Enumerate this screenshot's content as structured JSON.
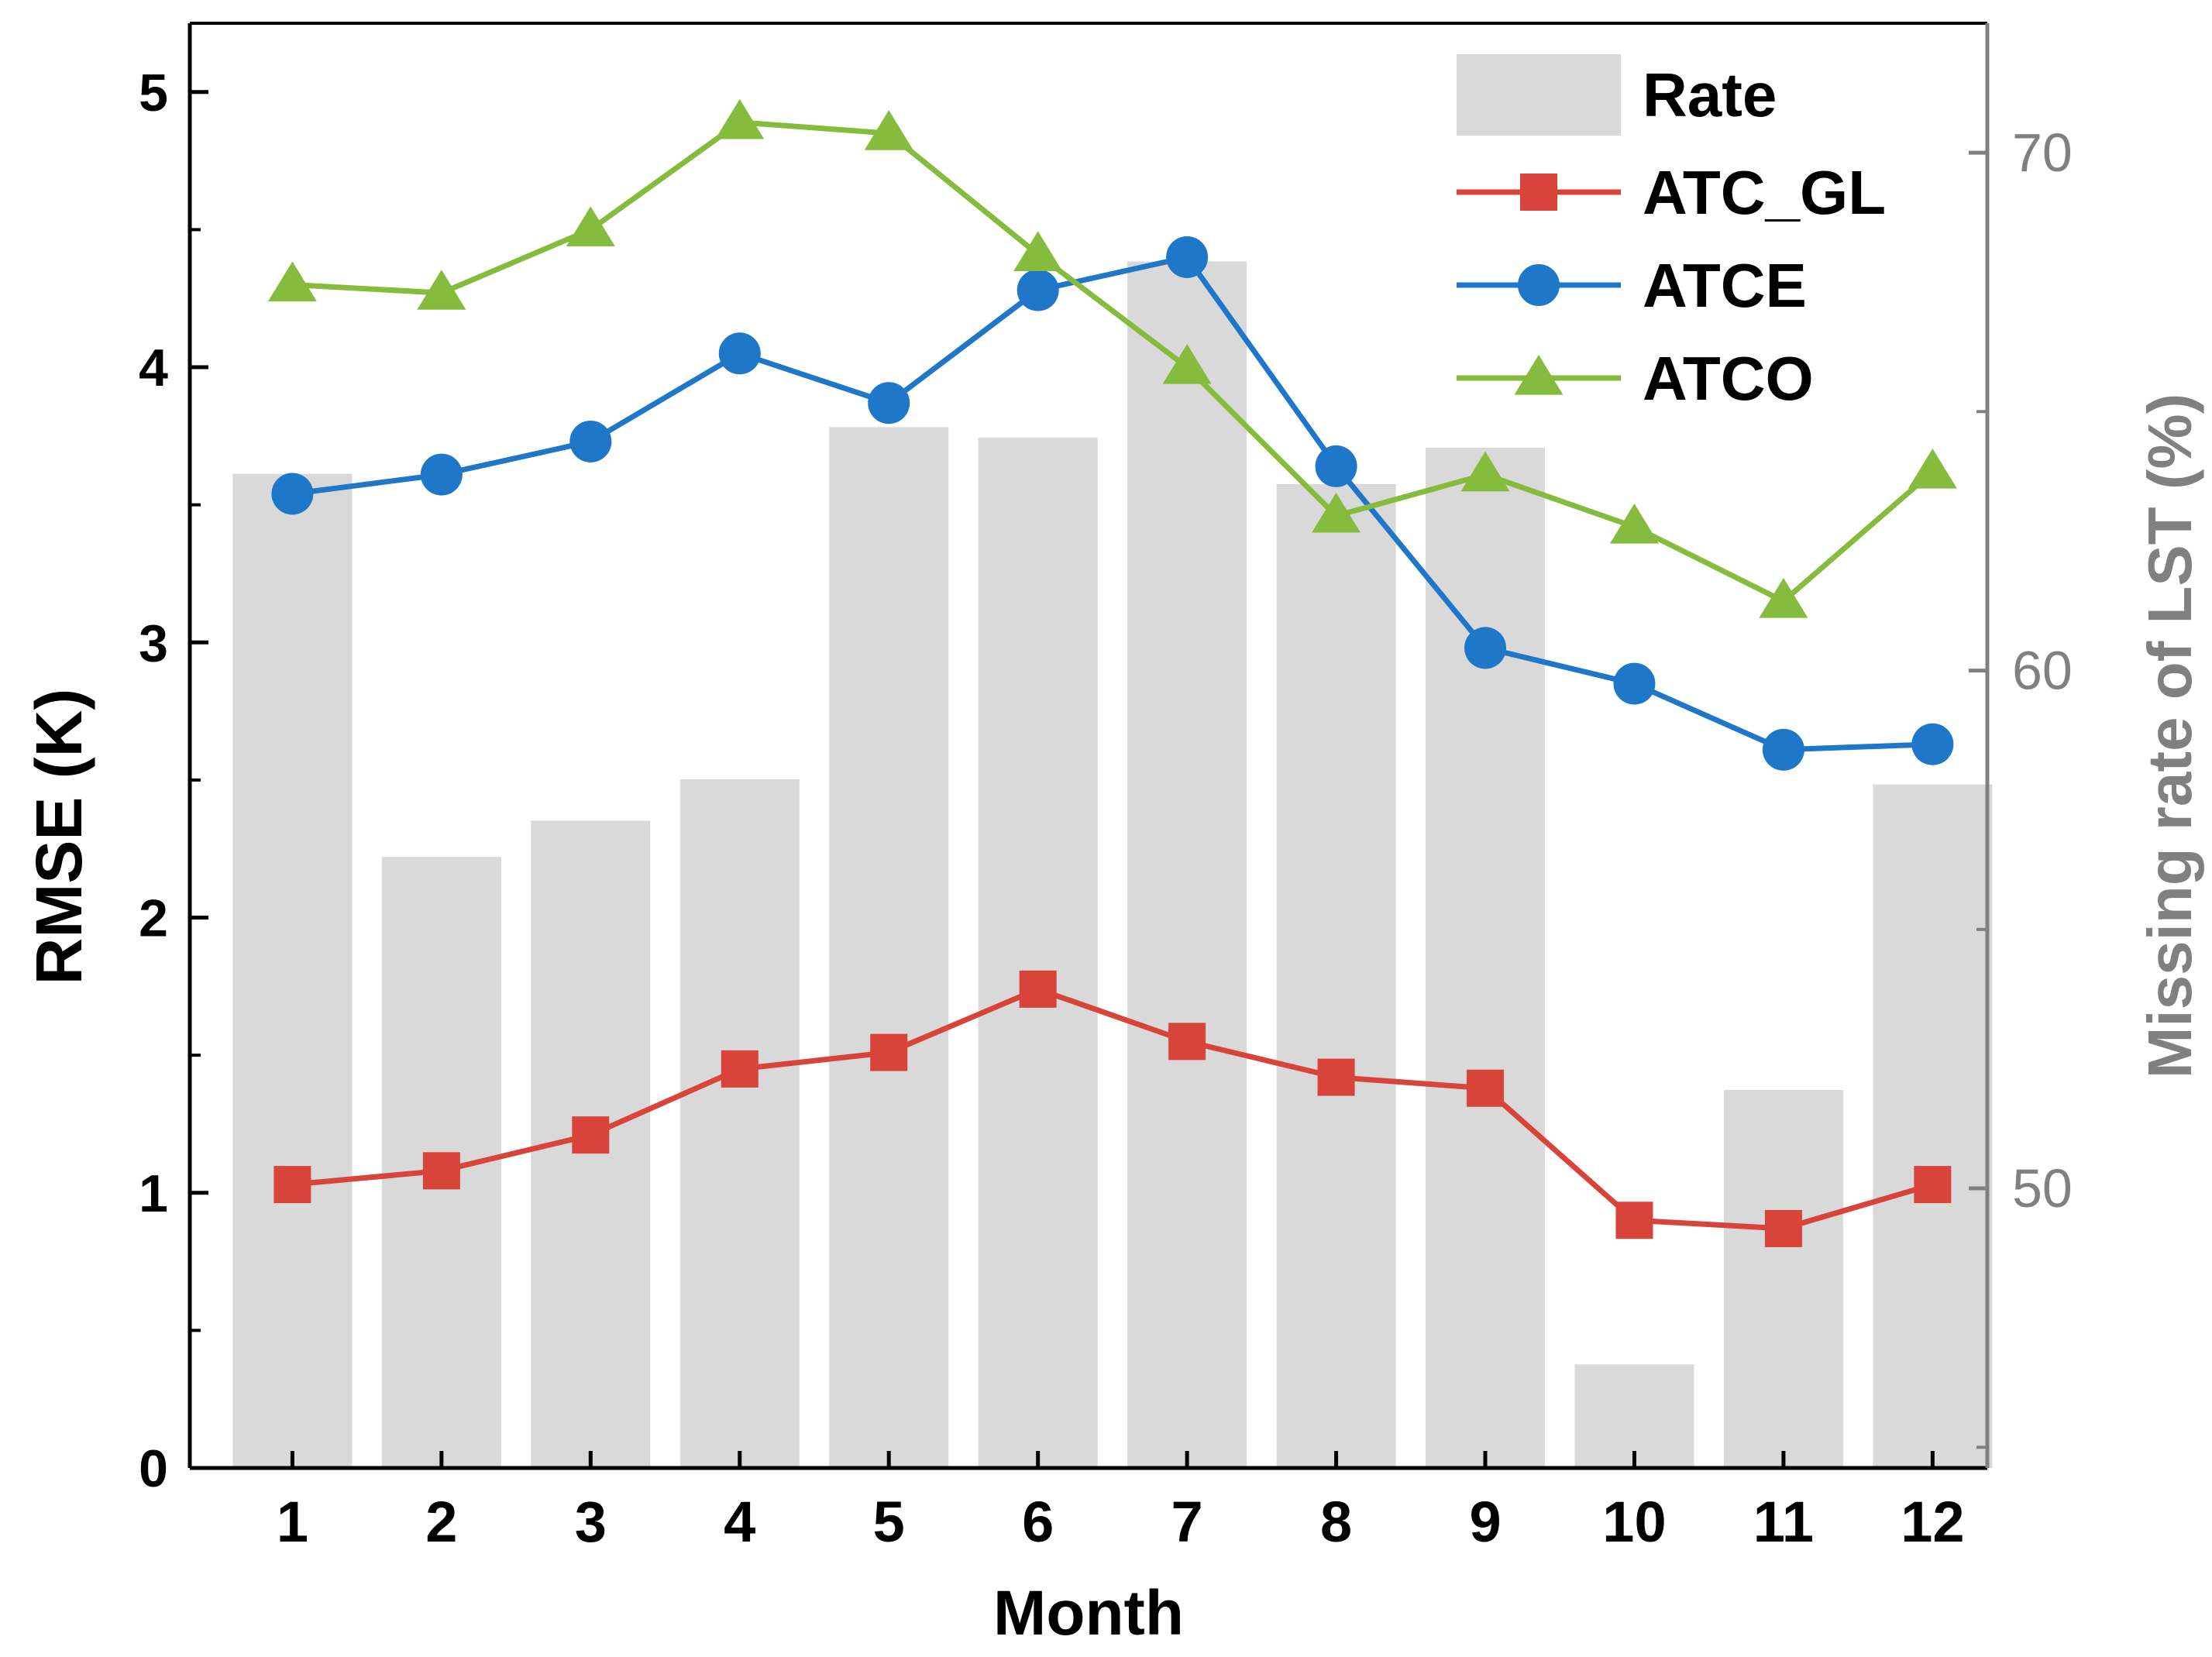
{
  "chart_data": {
    "type": "bar+line",
    "xlabel": "Month",
    "ylabel_left": "RMSE (K)",
    "ylabel_right": "Missing rate of LST (%)",
    "categories": [
      "1",
      "2",
      "3",
      "4",
      "5",
      "6",
      "7",
      "8",
      "9",
      "10",
      "11",
      "12"
    ],
    "ylim_left": [
      0,
      5.25
    ],
    "yticks_left": [
      "0",
      "1",
      "2",
      "3",
      "4",
      "5"
    ],
    "ylim_right": [
      44.6,
      72.5
    ],
    "yticks_right": [
      "50",
      "60",
      "70"
    ],
    "bars": {
      "name": "Rate",
      "axis": "right",
      "color": "#d9d9d9",
      "values": [
        63.8,
        56.4,
        57.1,
        57.9,
        64.7,
        64.5,
        67.9,
        63.6,
        64.3,
        46.6,
        51.9,
        57.8
      ]
    },
    "series": [
      {
        "name": "ATC_GL",
        "axis": "left",
        "color": "#d9443a",
        "marker": "square",
        "values": [
          1.03,
          1.08,
          1.21,
          1.45,
          1.51,
          1.74,
          1.55,
          1.42,
          1.38,
          0.9,
          0.87,
          1.03
        ]
      },
      {
        "name": "ATCE",
        "axis": "left",
        "color": "#1f77c9",
        "marker": "circle",
        "values": [
          3.54,
          3.61,
          3.73,
          4.05,
          3.87,
          4.28,
          4.4,
          3.64,
          2.98,
          2.85,
          2.61,
          2.63
        ]
      },
      {
        "name": "ATCO",
        "axis": "left",
        "color": "#86bc3e",
        "marker": "triangle",
        "values": [
          4.3,
          4.27,
          4.5,
          4.89,
          4.85,
          4.41,
          4.0,
          3.46,
          3.61,
          3.42,
          3.15,
          3.62
        ]
      }
    ],
    "legend_position": "top-right"
  }
}
